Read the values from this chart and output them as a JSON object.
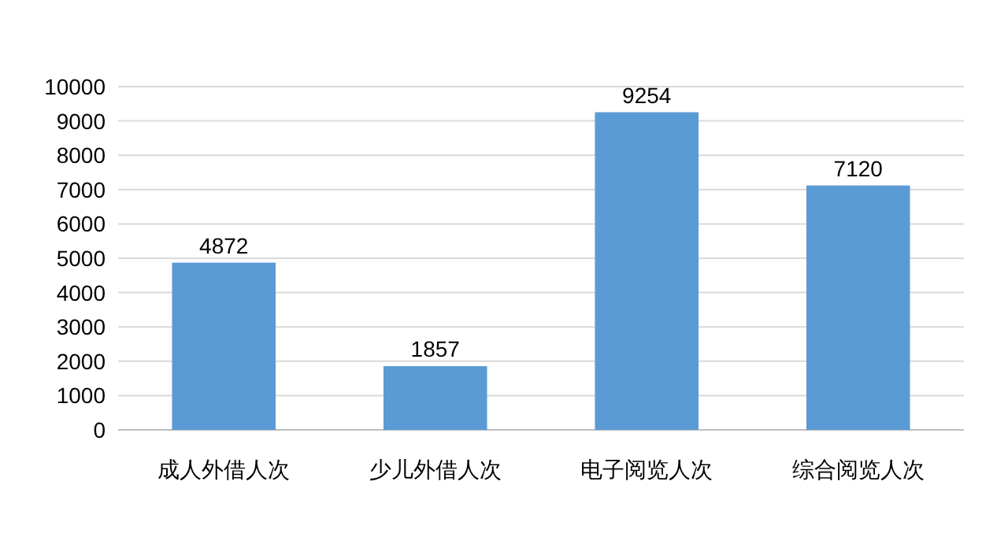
{
  "chart_data": {
    "type": "bar",
    "categories": [
      "成人外借人次",
      "少儿外借人次",
      "电子阅览人次",
      "综合阅览人次"
    ],
    "values": [
      4872,
      1857,
      9254,
      7120
    ],
    "color": "#5b9bd5",
    "ylim": [
      0,
      10000
    ],
    "yticks": [
      0,
      1000,
      2000,
      3000,
      4000,
      5000,
      6000,
      7000,
      8000,
      9000,
      10000
    ],
    "grid": "y",
    "data_labels": true
  }
}
